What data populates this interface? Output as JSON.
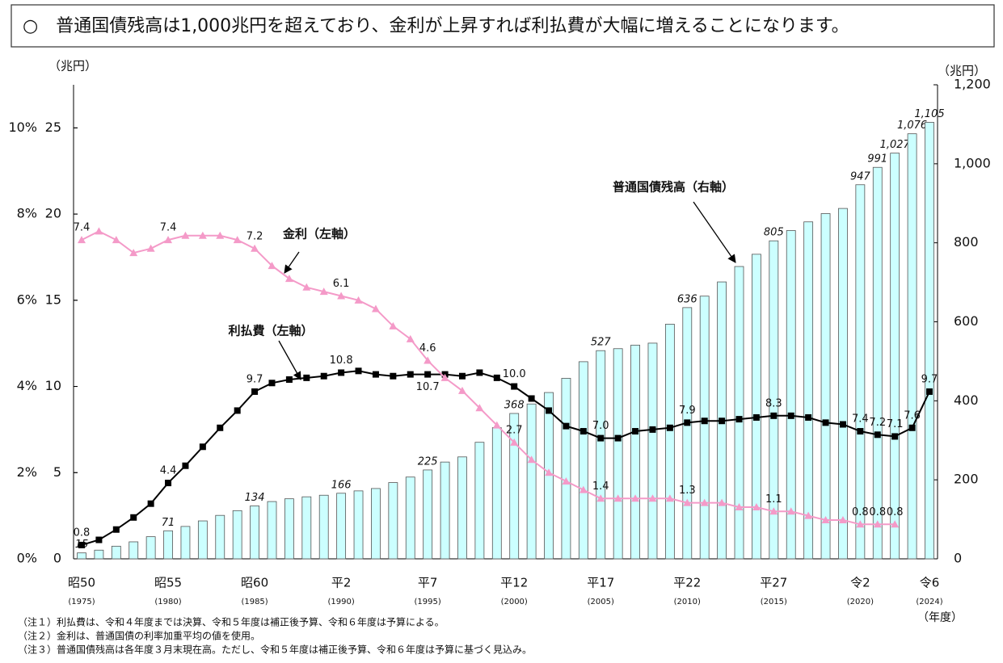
{
  "chart_data": {
    "type": "combo",
    "title": "○　普通国債残高は1,000兆円を超えており、金利が上昇すれば利払費が大幅に増えることになります。",
    "y_unit": "（兆円）",
    "y2_unit": "（兆円）",
    "x_unit": "（年度）",
    "categories": [
      "昭50",
      null,
      null,
      null,
      null,
      "昭55",
      null,
      null,
      null,
      null,
      "昭60",
      null,
      null,
      null,
      null,
      "平2",
      null,
      null,
      null,
      null,
      "平7",
      null,
      null,
      null,
      null,
      "平12",
      null,
      null,
      null,
      null,
      "平17",
      null,
      null,
      null,
      null,
      "平22",
      null,
      null,
      null,
      null,
      "平27",
      null,
      null,
      null,
      null,
      "令2",
      null,
      null,
      null,
      "令6"
    ],
    "category_years": [
      "(1975)",
      null,
      null,
      null,
      null,
      "(1980)",
      null,
      null,
      null,
      null,
      "(1985)",
      null,
      null,
      null,
      null,
      "(1990)",
      null,
      null,
      null,
      null,
      "(1995)",
      null,
      null,
      null,
      null,
      "(2000)",
      null,
      null,
      null,
      null,
      "(2005)",
      null,
      null,
      null,
      null,
      "(2010)",
      null,
      null,
      null,
      null,
      "(2015)",
      null,
      null,
      null,
      null,
      "(2020)",
      null,
      null,
      null,
      "(2024)"
    ],
    "ylim": [
      0,
      27.5
    ],
    "yticks": [
      0,
      5,
      10,
      15,
      20,
      25
    ],
    "y2lim": [
      0,
      1200
    ],
    "y2ticks": [
      0,
      200,
      400,
      600,
      800,
      {
        "value": 1000,
        "label": "1,000"
      },
      {
        "value": 1200,
        "label": "1,200"
      }
    ],
    "y3lim": [
      0,
      11
    ],
    "y3ticks": [
      {
        "value": 0,
        "label": "0%"
      },
      {
        "value": 2,
        "label": "2%"
      },
      {
        "value": 4,
        "label": "4%"
      },
      {
        "value": 6,
        "label": "6%"
      },
      {
        "value": 8,
        "label": "8%"
      },
      {
        "value": 10,
        "label": "10%"
      }
    ],
    "series": [
      {
        "name": "普通国債残高（右軸）",
        "type": "bar",
        "axis": "y2",
        "color": "#ccffff",
        "values": [
          15,
          22,
          32,
          43,
          56,
          71,
          82,
          96,
          110,
          122,
          134,
          145,
          152,
          157,
          161,
          166,
          172,
          178,
          193,
          207,
          225,
          245,
          258,
          295,
          332,
          368,
          392,
          421,
          457,
          499,
          527,
          532,
          541,
          546,
          594,
          636,
          665,
          701,
          740,
          771,
          805,
          831,
          853,
          874,
          887,
          947,
          991,
          1027,
          1076,
          1105
        ],
        "value_labels": [
          "15",
          null,
          null,
          null,
          null,
          "71",
          null,
          null,
          null,
          null,
          "134",
          null,
          null,
          null,
          null,
          "166",
          null,
          null,
          null,
          null,
          "225",
          null,
          null,
          null,
          null,
          "368",
          null,
          null,
          null,
          null,
          "527",
          null,
          null,
          null,
          null,
          "636",
          null,
          null,
          null,
          null,
          "805",
          null,
          null,
          null,
          null,
          "947",
          "991",
          "1,027",
          "1,076",
          "1,105"
        ]
      },
      {
        "name": "利払費（左軸）",
        "type": "line",
        "axis": "y",
        "color": "#000000",
        "marker": "square",
        "values": [
          0.8,
          1.1,
          1.7,
          2.4,
          3.2,
          4.4,
          5.4,
          6.5,
          7.6,
          8.6,
          9.7,
          10.2,
          10.4,
          10.5,
          10.6,
          10.8,
          10.9,
          10.7,
          10.6,
          10.7,
          10.7,
          10.7,
          10.6,
          10.8,
          10.5,
          10.0,
          9.3,
          8.6,
          7.7,
          7.4,
          7.0,
          7.0,
          7.4,
          7.5,
          7.6,
          7.9,
          8.0,
          8.0,
          8.1,
          8.2,
          8.3,
          8.3,
          8.2,
          7.9,
          7.8,
          7.4,
          7.2,
          7.1,
          7.6,
          9.7
        ],
        "value_labels": [
          "0.8",
          null,
          null,
          null,
          null,
          "4.4",
          null,
          null,
          null,
          null,
          "9.7",
          null,
          null,
          null,
          null,
          "10.8",
          null,
          null,
          null,
          null,
          "10.7",
          null,
          null,
          null,
          null,
          "10.0",
          null,
          null,
          null,
          null,
          "7.0",
          null,
          null,
          null,
          null,
          "7.9",
          null,
          null,
          null,
          null,
          "8.3",
          null,
          null,
          null,
          null,
          "7.4",
          "7.2",
          "7.1",
          "7.6",
          "9.7"
        ]
      },
      {
        "name": "金利（左軸）",
        "type": "line",
        "axis": "y3",
        "color": "#f49ac8",
        "marker": "triangle",
        "values": [
          7.4,
          7.6,
          7.4,
          7.1,
          7.2,
          7.4,
          7.5,
          7.5,
          7.5,
          7.4,
          7.2,
          6.8,
          6.5,
          6.3,
          6.2,
          6.1,
          6.0,
          5.8,
          5.4,
          5.1,
          4.6,
          4.2,
          3.9,
          3.5,
          3.1,
          2.7,
          2.3,
          2.0,
          1.8,
          1.6,
          1.4,
          1.4,
          1.4,
          1.4,
          1.4,
          1.3,
          1.3,
          1.3,
          1.2,
          1.2,
          1.1,
          1.1,
          1.0,
          0.9,
          0.9,
          0.8,
          0.8,
          0.8,
          null,
          null
        ],
        "value_labels": [
          "7.4",
          null,
          null,
          null,
          null,
          "7.4",
          null,
          null,
          null,
          null,
          "7.2",
          null,
          null,
          null,
          null,
          "6.1",
          null,
          null,
          null,
          null,
          "4.6",
          null,
          null,
          null,
          null,
          "2.7",
          null,
          null,
          null,
          null,
          "1.4",
          null,
          null,
          null,
          null,
          "1.3",
          null,
          null,
          null,
          null,
          "1.1",
          null,
          null,
          null,
          null,
          "0.8",
          "0.8",
          "0.8",
          null,
          null
        ]
      }
    ]
  },
  "notes": [
    "（注１）利払費は、令和４年度までは決算、令和５年度は補正後予算、令和６年度は予算による。",
    "（注２）金利は、普通国債の利率加重平均の値を使用。",
    "（注３）普通国債残高は各年度３月末現在高。ただし、令和５年度は補正後予算、令和６年度は予算に基づく見込み。"
  ]
}
